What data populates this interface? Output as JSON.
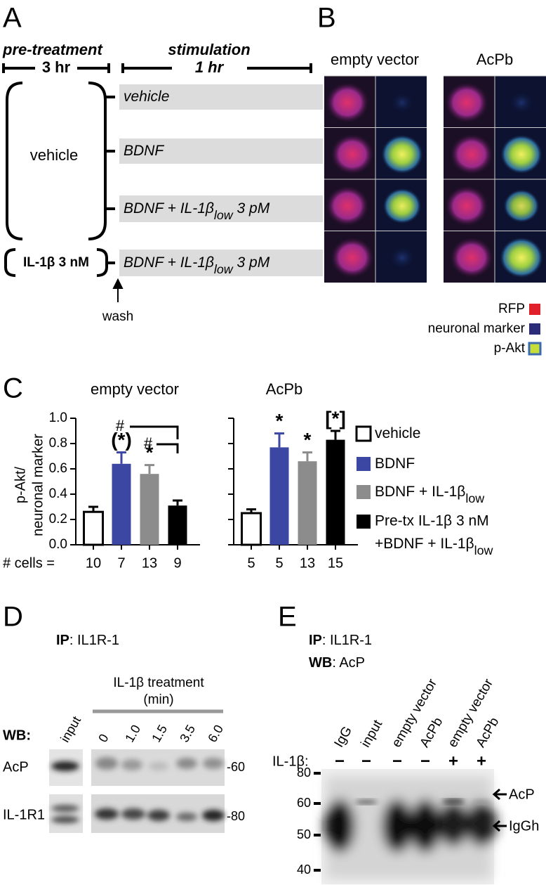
{
  "panel_labels": [
    "A",
    "B",
    "C",
    "D",
    "E"
  ],
  "panel_a": {
    "pre_treatment": "pre-treatment",
    "pre_duration": "3 hr",
    "stimulation": "stimulation",
    "stim_duration": "1 hr",
    "vehicle_group": "vehicle",
    "il1b_group": "IL-1β 3 nM",
    "conditions": [
      {
        "text": "vehicle"
      },
      {
        "text": "BDNF"
      },
      {
        "text": "BDNF + IL-1β",
        "sub": "low",
        "after": " 3 pM"
      },
      {
        "text": "BDNF + IL-1β",
        "sub": "low",
        "after": " 3 pM"
      }
    ],
    "wash": "wash"
  },
  "panel_b": {
    "columns": [
      "empty vector",
      "AcPb"
    ],
    "legend": [
      {
        "label": "RFP",
        "color": "#e0202a"
      },
      {
        "label": "neuronal marker",
        "color": "#2a2c78"
      },
      {
        "label": "p-Akt",
        "color": "#c6dd3a"
      }
    ]
  },
  "panel_c": {
    "y_label": [
      "p-Akt/",
      "neuronal marker"
    ],
    "cells_label": "# cells =",
    "hash_marks": [
      "#",
      "#"
    ],
    "legend": [
      {
        "name": "vehicle",
        "color": "#ffffff"
      },
      {
        "name": "BDNF",
        "color": "#3b47a3"
      },
      {
        "name": "BDNF + IL-1β",
        "sub": "low",
        "color": "#8c8c8c"
      },
      {
        "name": "Pre-tx IL-1β 3 nM",
        "name2": "+BDNF + IL-1β",
        "sub": "low",
        "color": "#000000"
      }
    ]
  },
  "chart_data": [
    {
      "type": "bar",
      "title": "empty vector",
      "values": [
        0.26,
        0.64,
        0.56,
        0.31
      ],
      "errors": [
        0.04,
        0.09,
        0.07,
        0.04
      ],
      "annotations": [
        null,
        "(*)",
        "*",
        null
      ],
      "n_cells": [
        10,
        7,
        13,
        9
      ],
      "ylim": [
        0,
        1.0
      ],
      "yticks": [
        {
          "value": 0,
          "label": "0.0"
        },
        0.2,
        0.4,
        0.6,
        0.8,
        {
          "value": 1.0,
          "label": "1.0"
        }
      ]
    },
    {
      "type": "bar",
      "title": "AcPb",
      "values": [
        0.25,
        0.77,
        0.66,
        0.83
      ],
      "errors": [
        0.03,
        0.11,
        0.07,
        0.07
      ],
      "annotations": [
        null,
        "*",
        "*",
        "[*]"
      ],
      "n_cells": [
        5,
        5,
        13,
        15
      ],
      "ylim": [
        0,
        1.0
      ],
      "yticks": [
        0,
        0.2,
        0.4,
        0.6,
        0.8,
        1.0
      ]
    }
  ],
  "panel_d": {
    "ip_label": "IP",
    "ip_target": ": IL1R-1",
    "treatment": "IL-1β treatment",
    "unit": "(min)",
    "wb_label": "WB:",
    "lanes": [
      "input",
      "0",
      "1.0",
      "1.5",
      "3.5",
      "6.0"
    ],
    "rows": [
      {
        "label": "AcP",
        "marker": "-60"
      },
      {
        "label": "IL-1R1",
        "marker": "-80"
      }
    ]
  },
  "panel_e": {
    "ip_label": "IP",
    "ip_target": ": IL1R-1",
    "wb_label": "WB",
    "wb_target": ": AcP",
    "lanes": [
      "IgG",
      "input",
      "empty vector",
      "AcPb",
      "empty vector",
      "AcPb"
    ],
    "treatment_label": "IL-1β:",
    "treatment": [
      "−",
      "−",
      "−",
      "−",
      "+",
      "+"
    ],
    "markers": [
      "80",
      "60",
      "50",
      "40"
    ],
    "bands": [
      "AcP",
      "IgGh"
    ]
  }
}
